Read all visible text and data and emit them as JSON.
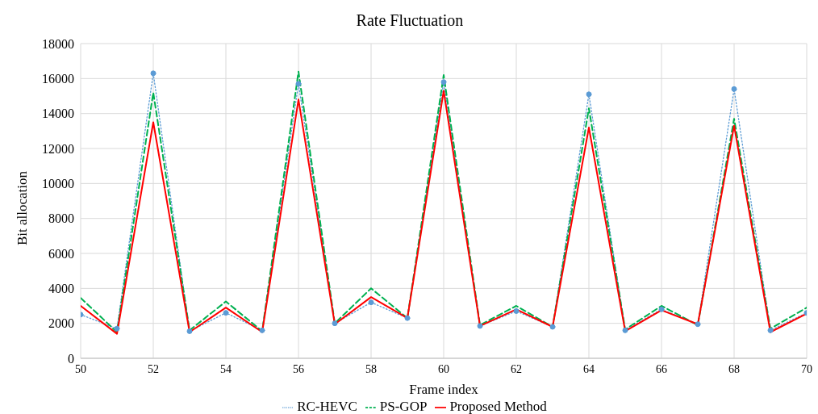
{
  "chart_data": {
    "type": "line",
    "title": "Rate Fluctuation",
    "xlabel": "Frame index",
    "ylabel": "Bit allocation",
    "x": [
      50,
      51,
      52,
      53,
      54,
      55,
      56,
      57,
      58,
      59,
      60,
      61,
      62,
      63,
      64,
      65,
      66,
      67,
      68,
      69,
      70
    ],
    "series": [
      {
        "name": "RC-HEVC",
        "color": "#5b9bd5",
        "line_style": "dotted",
        "marker": "circle",
        "values": [
          2500,
          1700,
          16300,
          1550,
          2600,
          1600,
          15700,
          2000,
          3200,
          2300,
          15800,
          1850,
          2700,
          1800,
          15100,
          1600,
          2800,
          1950,
          15400,
          1600,
          2600
        ]
      },
      {
        "name": "PS-GOP",
        "color": "#00b050",
        "line_style": "dashed",
        "marker": "none",
        "values": [
          3450,
          1500,
          15200,
          1600,
          3250,
          1550,
          16400,
          2000,
          4000,
          2300,
          16200,
          1900,
          3000,
          1800,
          14300,
          1650,
          3000,
          1900,
          13700,
          1700,
          2900
        ]
      },
      {
        "name": "Proposed Method",
        "color": "#ff0000",
        "line_style": "solid",
        "marker": "none",
        "values": [
          3000,
          1400,
          13500,
          1500,
          2900,
          1500,
          14800,
          1950,
          3500,
          2300,
          15300,
          1850,
          2800,
          1800,
          13200,
          1550,
          2750,
          1950,
          13300,
          1500,
          2550
        ]
      }
    ],
    "xlim": [
      50,
      70
    ],
    "xticks": [
      50,
      52,
      54,
      56,
      58,
      60,
      62,
      64,
      66,
      68,
      70
    ],
    "ylim": [
      0,
      18000
    ],
    "yticks": [
      0,
      2000,
      4000,
      6000,
      8000,
      10000,
      12000,
      14000,
      16000,
      18000
    ],
    "grid": true,
    "legend": "bottom"
  }
}
